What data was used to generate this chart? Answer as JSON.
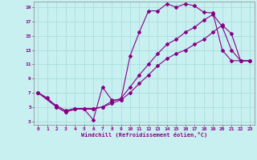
{
  "xlabel": "Windchill (Refroidissement éolien,°C)",
  "bg_color": "#c8f0f0",
  "line_color": "#880088",
  "grid_color": "#aadddd",
  "xmin": 0,
  "xmax": 23,
  "ymin": 3,
  "ymax": 19,
  "yticks": [
    3,
    5,
    7,
    9,
    11,
    13,
    15,
    17,
    19
  ],
  "xticks": [
    0,
    1,
    2,
    3,
    4,
    5,
    6,
    7,
    8,
    9,
    10,
    11,
    12,
    13,
    14,
    15,
    16,
    17,
    18,
    19,
    20,
    21,
    22,
    23
  ],
  "line1_x": [
    0,
    1,
    2,
    3,
    4,
    5,
    6,
    7,
    8,
    9,
    10,
    11,
    12,
    13,
    14,
    15,
    16,
    17,
    18,
    19,
    20,
    21,
    22,
    23
  ],
  "line1_y": [
    7,
    6.3,
    5.0,
    4.3,
    4.7,
    4.7,
    3.2,
    7.8,
    6.0,
    6.0,
    12.2,
    15.5,
    18.5,
    18.5,
    19.5,
    19.0,
    19.5,
    19.2,
    18.3,
    18.2,
    13.0,
    11.5,
    11.5,
    11.5
  ],
  "line2_x": [
    0,
    2,
    3,
    4,
    5,
    6,
    7,
    8,
    9,
    10,
    11,
    12,
    13,
    14,
    15,
    16,
    17,
    18,
    19,
    20,
    21,
    22,
    23
  ],
  "line2_y": [
    7,
    5.2,
    4.5,
    4.8,
    4.8,
    4.8,
    5.0,
    5.8,
    6.2,
    7.8,
    9.5,
    11.0,
    12.5,
    13.8,
    14.5,
    15.5,
    16.2,
    17.2,
    18.0,
    16.3,
    13.0,
    11.5,
    11.5
  ],
  "line3_x": [
    0,
    2,
    3,
    4,
    5,
    6,
    7,
    8,
    9,
    10,
    11,
    12,
    13,
    14,
    15,
    16,
    17,
    18,
    19,
    20,
    21,
    22,
    23
  ],
  "line3_y": [
    7,
    5.0,
    4.3,
    4.7,
    4.7,
    4.7,
    5.0,
    5.5,
    6.0,
    7.0,
    8.3,
    9.5,
    10.8,
    11.8,
    12.5,
    13.0,
    13.8,
    14.5,
    15.5,
    16.5,
    15.3,
    11.5,
    11.5
  ]
}
